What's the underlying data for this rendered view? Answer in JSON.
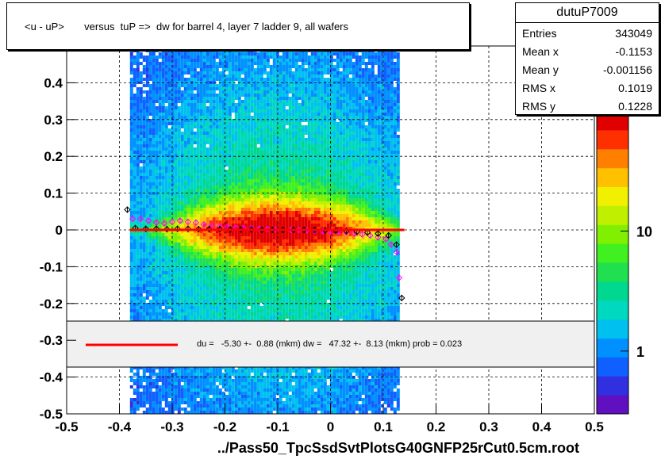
{
  "title": "<u - uP>       versus  tuP =>  dw for barrel 4, layer 7 ladder 9, all wafers",
  "xlabel": "../Pass50_TpcSsdSvtPlotsG40GNFP25rCut0.5cm.root",
  "stats": {
    "name": "dutuP7009",
    "rows": [
      {
        "label": "Entries",
        "value": "343049"
      },
      {
        "label": "Mean x",
        "value": "-0.1153"
      },
      {
        "label": "Mean y",
        "value": "-0.001156"
      },
      {
        "label": "RMS x",
        "value": "0.1019"
      },
      {
        "label": "RMS y",
        "value": "0.1228"
      }
    ]
  },
  "fit_text": "du =   -5.30 +-  0.88 (mkm) dw =   47.32 +-  8.13 (mkm) prob = 0.023",
  "colors": {
    "fit_line": "#ff0000",
    "legend_bg": "#f0f0f0",
    "frame": "#000000"
  },
  "chart_data": {
    "type": "heatmap",
    "xlim": [
      -0.5,
      0.5
    ],
    "ylim": [
      -0.5,
      0.5
    ],
    "x_ticks": [
      "-0.5",
      "-0.4",
      "-0.3",
      "-0.2",
      "-0.1",
      "0",
      "0.1",
      "0.2",
      "0.3",
      "0.4",
      "0.5"
    ],
    "y_ticks": [
      "-0.5",
      "-0.4",
      "-0.3",
      "-0.2",
      "-0.1",
      "0",
      "0.1",
      "0.2",
      "0.3",
      "0.4"
    ],
    "y_tick_values": [
      -0.5,
      -0.4,
      -0.3,
      -0.2,
      -0.1,
      0,
      0.1,
      0.2,
      0.3,
      0.4
    ],
    "grid": true,
    "colorbar": {
      "scale": "log",
      "labels": [
        "1",
        "10"
      ],
      "label_values": [
        1,
        10
      ],
      "range": [
        0.3,
        100
      ]
    },
    "band": {
      "x_range": [
        -0.38,
        0.13
      ],
      "center_x": -0.1,
      "y_core_halfwidth": 0.012
    },
    "fit_line": {
      "x": [
        -0.38,
        0.14
      ],
      "y": [
        0.0,
        0.0
      ]
    },
    "profile_black": {
      "x": [
        -0.385,
        -0.37,
        -0.35,
        -0.33,
        -0.31,
        -0.29,
        -0.27,
        -0.25,
        -0.23,
        -0.21,
        -0.19,
        -0.17,
        -0.15,
        -0.13,
        -0.11,
        -0.09,
        -0.07,
        -0.05,
        -0.03,
        -0.01,
        0.01,
        0.03,
        0.05,
        0.07,
        0.09,
        0.11,
        0.125,
        0.135
      ],
      "y": [
        0.055,
        0.005,
        0.003,
        0.003,
        0.002,
        0.003,
        0.003,
        0.002,
        0.002,
        0.002,
        0.001,
        0.001,
        0.001,
        0.0,
        0.0,
        0.0,
        0.0,
        0.0,
        0.0,
        -0.001,
        -0.002,
        -0.003,
        -0.005,
        -0.007,
        -0.01,
        -0.015,
        -0.04,
        -0.185
      ]
    },
    "profile_magenta": {
      "x": [
        -0.375,
        -0.36,
        -0.345,
        -0.33,
        -0.315,
        -0.3,
        -0.285,
        -0.27,
        -0.255,
        -0.24,
        -0.225,
        -0.21,
        -0.195,
        -0.18,
        -0.165,
        -0.15,
        -0.135,
        -0.12,
        -0.105,
        -0.09,
        -0.075,
        -0.06,
        -0.045,
        -0.03,
        -0.015,
        0.0,
        0.015,
        0.03,
        0.045,
        0.06,
        0.075,
        0.09,
        0.105,
        0.115,
        0.125,
        0.13
      ],
      "y": [
        0.03,
        0.03,
        0.025,
        0.02,
        0.018,
        0.022,
        0.025,
        0.022,
        0.02,
        0.015,
        0.012,
        0.01,
        0.008,
        0.006,
        0.005,
        0.004,
        0.003,
        0.002,
        0.001,
        0.0,
        0.0,
        0.0,
        -0.001,
        -0.002,
        -0.003,
        -0.004,
        -0.005,
        -0.006,
        -0.01,
        -0.012,
        -0.015,
        -0.02,
        -0.025,
        -0.04,
        -0.06,
        -0.13
      ]
    }
  }
}
